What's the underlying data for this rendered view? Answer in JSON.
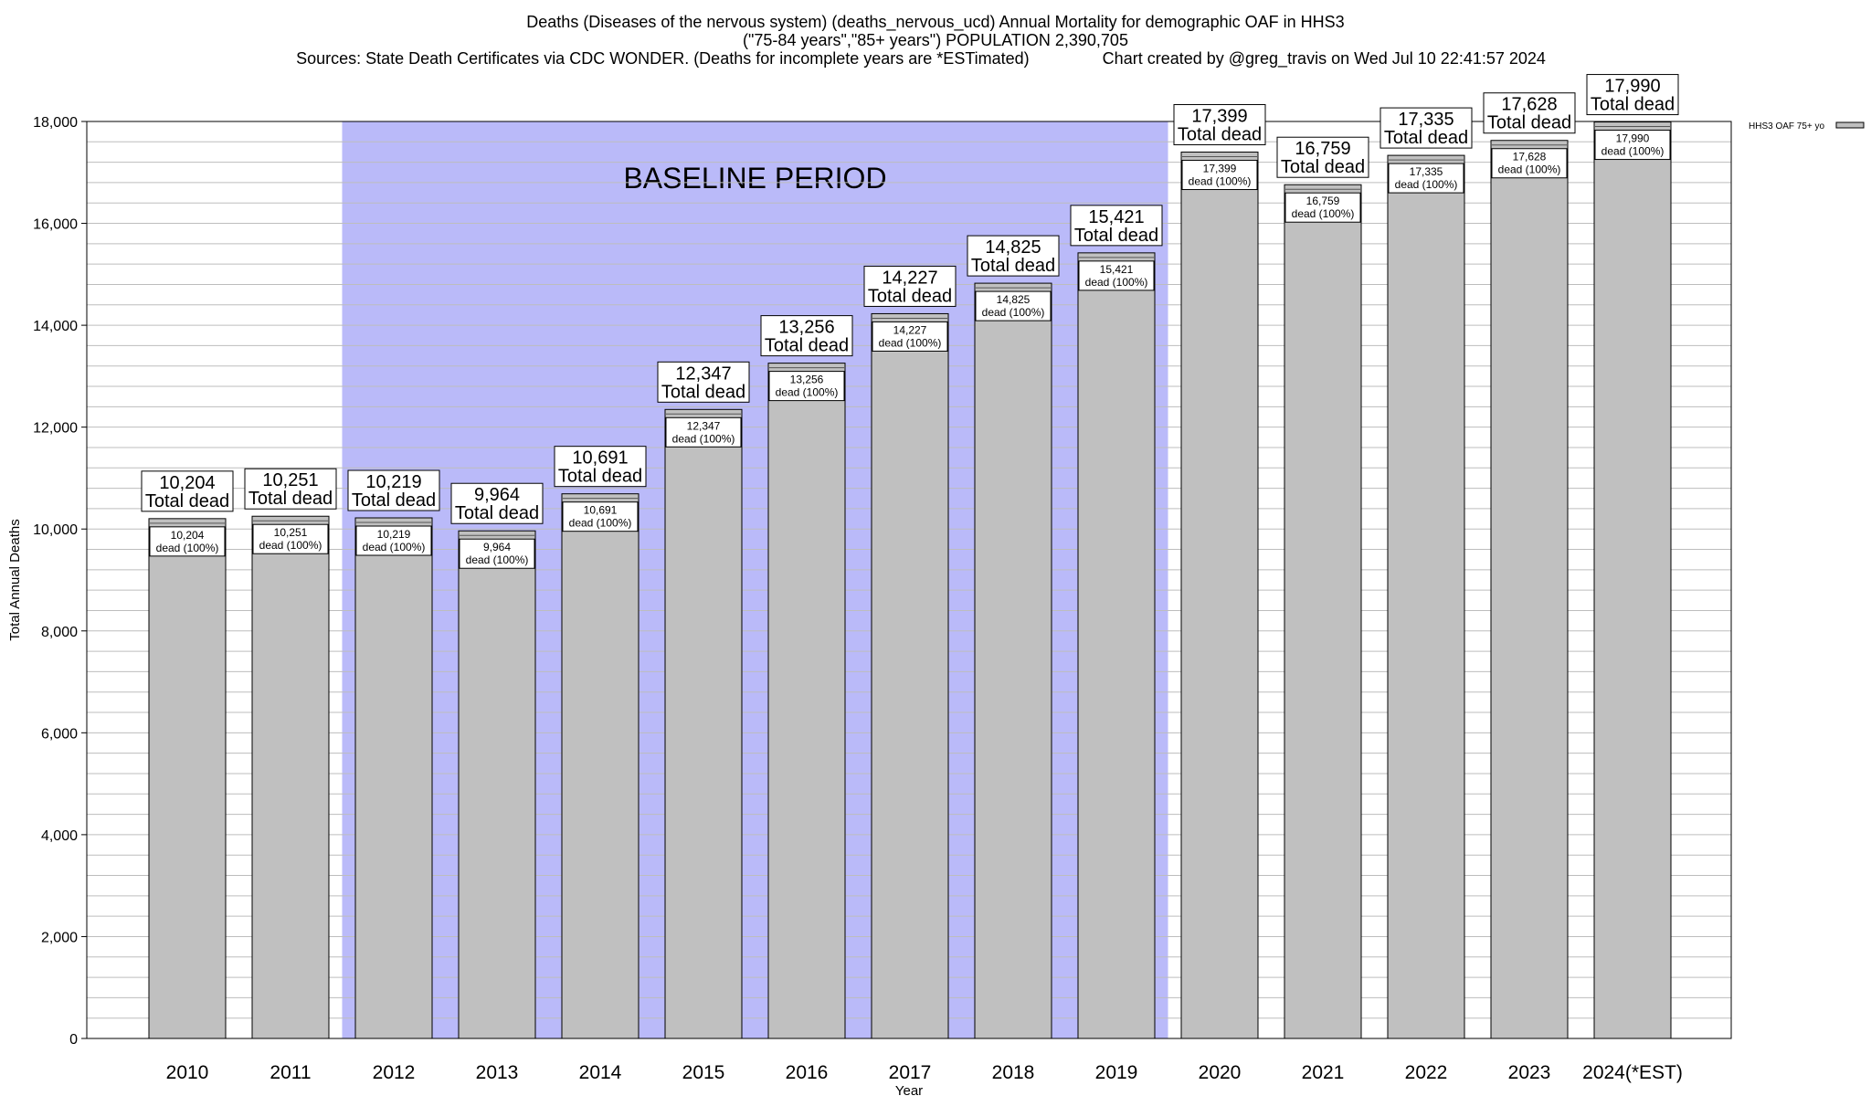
{
  "header": {
    "line1": "Deaths (Diseases of the nervous system) (deaths_nervous_ucd) Annual Mortality for demographic OAF in HHS3",
    "line2": "(\"75-84 years\",\"85+ years\") POPULATION 2,390,705",
    "line3": "Sources: State Death Certificates via CDC WONDER. (Deaths for incomplete years are *ESTimated)                Chart created by @greg_travis on Wed Jul 10 22:41:57 2024"
  },
  "colors": {
    "bar_fill": "#c0c0c0",
    "baseline_fill": "#babaf9",
    "grid": "#bdbdbd",
    "axis": "#000000"
  },
  "chart_data": {
    "type": "bar",
    "title": "Deaths (Diseases of the nervous system) (deaths_nervous_ucd) Annual Mortality for demographic OAF in HHS3",
    "xlabel": "Year",
    "ylabel": "Total Annual Deaths",
    "ylim": [
      0,
      18000
    ],
    "yticks": [
      0,
      2000,
      4000,
      6000,
      8000,
      10000,
      12000,
      14000,
      16000,
      18000
    ],
    "ytick_labels": [
      "0",
      "2,000",
      "4,000",
      "6,000",
      "8,000",
      "10,000",
      "12,000",
      "14,000",
      "16,000",
      "18,000"
    ],
    "minor_grid_step": 400,
    "grid": true,
    "categories": [
      "2010",
      "2011",
      "2012",
      "2013",
      "2014",
      "2015",
      "2016",
      "2017",
      "2018",
      "2019",
      "2020",
      "2021",
      "2022",
      "2023",
      "2024(*EST)"
    ],
    "series": [
      {
        "name": "HHS3 OAF 75+ yo",
        "values": [
          10204,
          10251,
          10219,
          9964,
          10691,
          12347,
          13256,
          14227,
          14825,
          15421,
          17399,
          16759,
          17335,
          17628,
          17990
        ]
      }
    ],
    "value_labels": [
      "10,204",
      "10,251",
      "10,219",
      "9,964",
      "10,691",
      "12,347",
      "13,256",
      "14,227",
      "14,825",
      "15,421",
      "17,399",
      "16,759",
      "17,335",
      "17,628",
      "17,990"
    ],
    "total_label": "Total dead",
    "inner_label": "dead (100%)",
    "baseline": {
      "label": "BASELINE PERIOD",
      "from": "2012",
      "to": "2019"
    },
    "legend": {
      "placement": "top-right",
      "entries": [
        "HHS3 OAF 75+ yo"
      ]
    }
  }
}
